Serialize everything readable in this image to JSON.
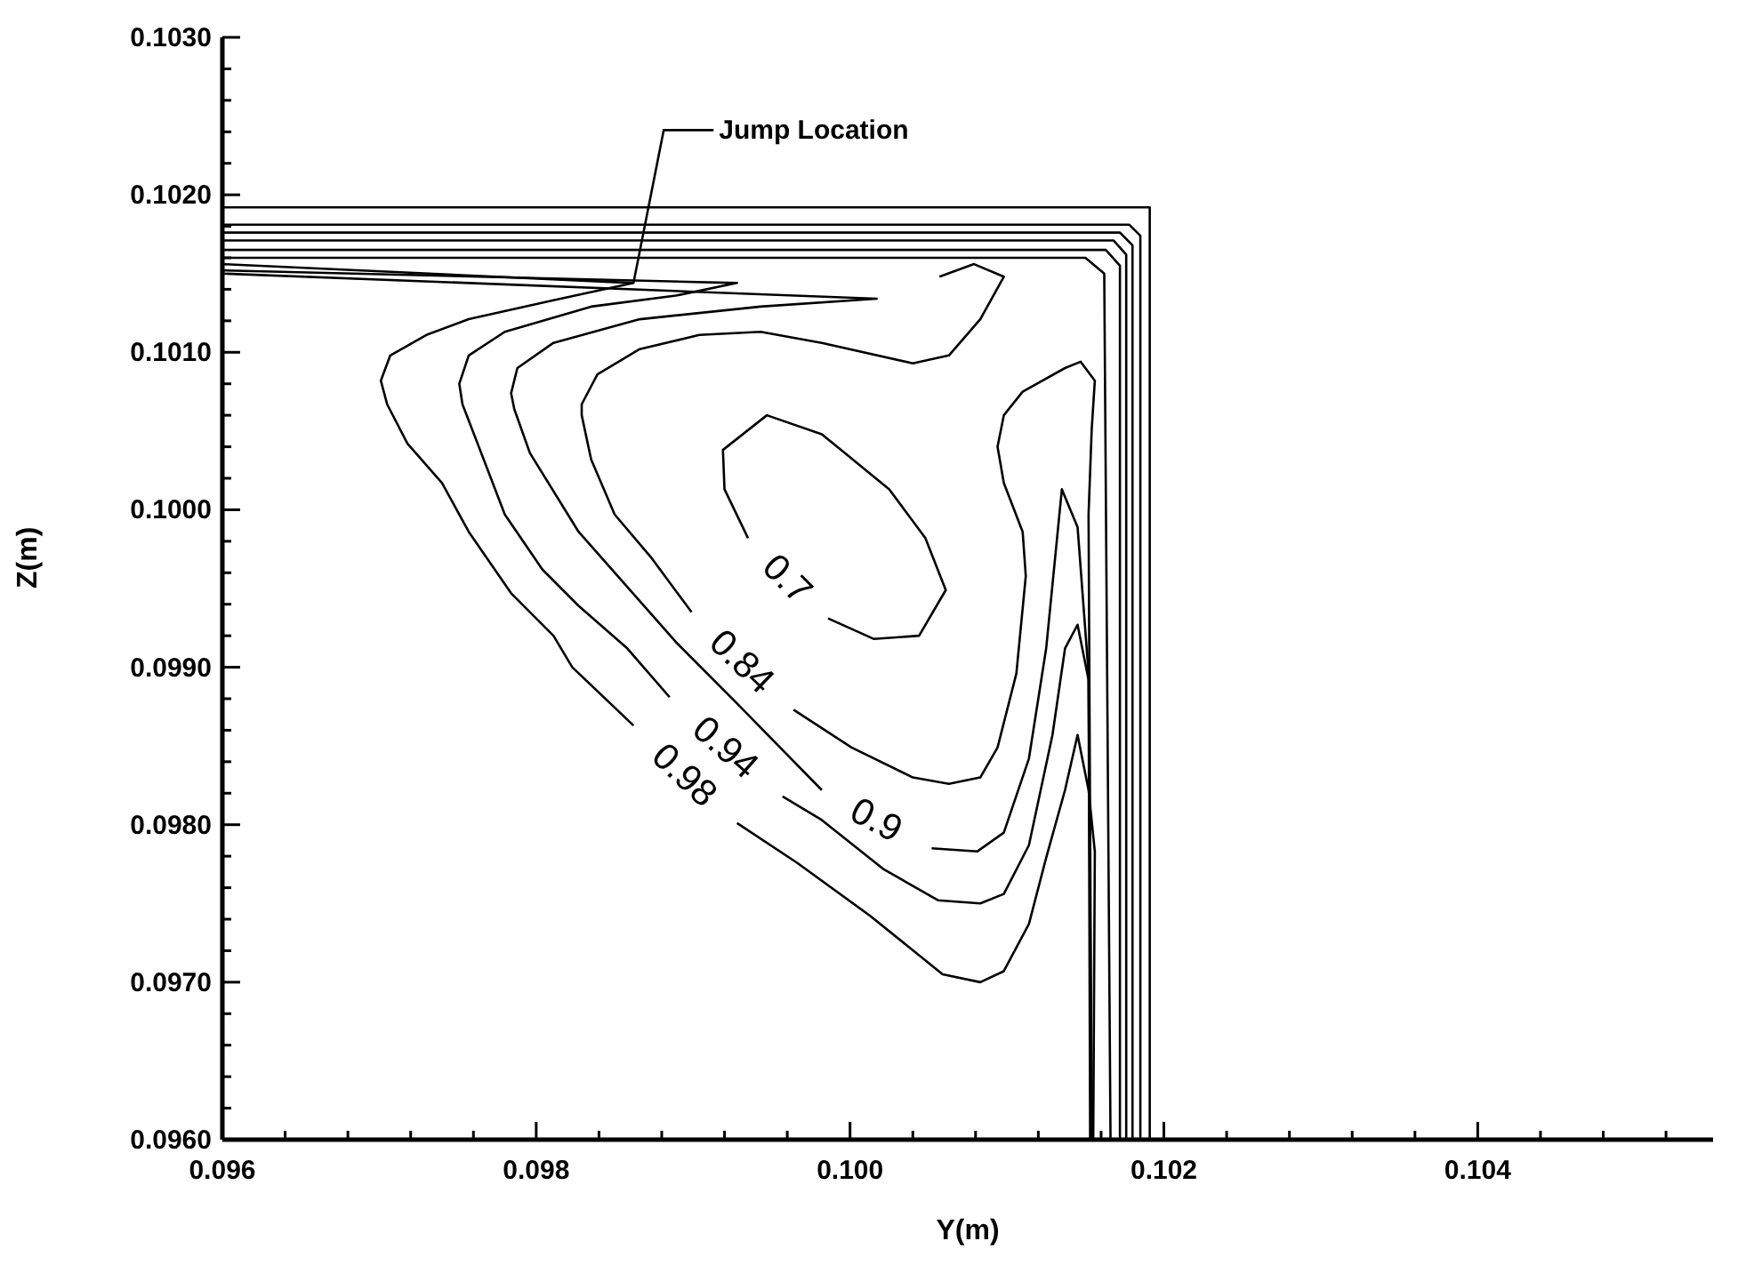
{
  "chart_data": {
    "type": "line",
    "xlabel": "Y(m)",
    "ylabel": "Z(m)",
    "xlim": [
      0.096,
      0.1055
    ],
    "ylim": [
      0.096,
      0.103
    ],
    "marker": "none",
    "line_style": "solid",
    "xticks": [
      0.096,
      {
        "value": 0.0964,
        "label": null
      },
      {
        "value": 0.0968,
        "label": null
      },
      {
        "value": 0.0972,
        "label": null
      },
      {
        "value": 0.0976,
        "label": null
      },
      0.098,
      {
        "value": 0.0984,
        "label": null
      },
      {
        "value": 0.0988,
        "label": null
      },
      {
        "value": 0.0992,
        "label": null
      },
      {
        "value": 0.0996,
        "label": null
      },
      {
        "value": 0.1,
        "label": "0.100"
      },
      {
        "value": 0.1004,
        "label": null
      },
      {
        "value": 0.1008,
        "label": null
      },
      {
        "value": 0.1012,
        "label": null
      },
      {
        "value": 0.1016,
        "label": null
      },
      0.102,
      {
        "value": 0.1024,
        "label": null
      },
      {
        "value": 0.1028,
        "label": null
      },
      {
        "value": 0.1032,
        "label": null
      },
      {
        "value": 0.1036,
        "label": null
      },
      0.104,
      {
        "value": 0.1044,
        "label": null
      },
      {
        "value": 0.1048,
        "label": null
      },
      {
        "value": 0.1052,
        "label": null
      }
    ],
    "yticks": [
      {
        "value": 0.096,
        "label": "0.0960"
      },
      {
        "value": 0.0962,
        "label": null
      },
      {
        "value": 0.0964,
        "label": null
      },
      {
        "value": 0.0966,
        "label": null
      },
      {
        "value": 0.0968,
        "label": null
      },
      {
        "value": 0.097,
        "label": "0.0970"
      },
      {
        "value": 0.0972,
        "label": null
      },
      {
        "value": 0.0974,
        "label": null
      },
      {
        "value": 0.0976,
        "label": null
      },
      {
        "value": 0.0978,
        "label": null
      },
      {
        "value": 0.098,
        "label": "0.0980"
      },
      {
        "value": 0.0982,
        "label": null
      },
      {
        "value": 0.0984,
        "label": null
      },
      {
        "value": 0.0986,
        "label": null
      },
      {
        "value": 0.0988,
        "label": null
      },
      {
        "value": 0.099,
        "label": "0.0990"
      },
      {
        "value": 0.0992,
        "label": null
      },
      {
        "value": 0.0994,
        "label": null
      },
      {
        "value": 0.0996,
        "label": null
      },
      {
        "value": 0.0998,
        "label": null
      },
      {
        "value": 0.1,
        "label": "0.1000"
      },
      {
        "value": 0.1002,
        "label": null
      },
      {
        "value": 0.1004,
        "label": null
      },
      {
        "value": 0.1006,
        "label": null
      },
      {
        "value": 0.1008,
        "label": null
      },
      {
        "value": 0.101,
        "label": "0.1010"
      },
      {
        "value": 0.1012,
        "label": null
      },
      {
        "value": 0.1014,
        "label": null
      },
      {
        "value": 0.1016,
        "label": null
      },
      {
        "value": 0.1018,
        "label": null
      },
      {
        "value": 0.102,
        "label": "0.1020"
      },
      {
        "value": 0.1022,
        "label": null
      },
      {
        "value": 0.1024,
        "label": null
      },
      {
        "value": 0.1026,
        "label": null
      },
      {
        "value": 0.1028,
        "label": null
      },
      {
        "value": 0.103,
        "label": "0.1030"
      }
    ],
    "annotations": [
      {
        "text": "Jump Location",
        "x": 0.09862,
        "y": 0.10144
      }
    ],
    "series": [
      {
        "name": "0.98",
        "color": "#000000",
        "x": [
          0.096,
          0.09862,
          0.09811,
          0.09757,
          0.0973,
          0.09707,
          0.09701,
          0.09705,
          0.09718,
          0.0974,
          0.09757,
          0.09784,
          0.09811,
          0.09823,
          0.09862,
          null,
          0.09928,
          0.09966,
          0.10013,
          0.10059,
          0.10083,
          0.10098,
          0.10114,
          0.10125,
          0.10137,
          0.10145,
          0.10152,
          0.10156,
          0.10155
        ],
        "values": [
          0.10156,
          0.10144,
          0.10133,
          0.10121,
          0.10111,
          0.10098,
          0.10082,
          0.10067,
          0.10042,
          0.10017,
          0.09986,
          0.09947,
          0.0992,
          0.099,
          0.09863,
          null,
          0.09801,
          0.09776,
          0.09742,
          0.09705,
          0.097,
          0.09707,
          0.09737,
          0.09779,
          0.09822,
          0.09857,
          0.09822,
          0.09783,
          0.096
        ]
      },
      {
        "name": "0.94",
        "color": "#000000",
        "x": [
          0.096,
          0.09928,
          0.09889,
          0.09835,
          0.0978,
          0.09757,
          0.09751,
          0.09753,
          0.09765,
          0.0978,
          0.09804,
          0.09827,
          0.09858,
          0.09885,
          null,
          0.09957,
          0.09982,
          0.10021,
          0.10056,
          0.10083,
          0.10098,
          0.10114,
          0.10129,
          0.10137,
          0.10145,
          0.10152,
          0.10154
        ],
        "values": [
          0.10152,
          0.10144,
          0.10136,
          0.10129,
          0.10113,
          0.10098,
          0.1008,
          0.10067,
          0.10036,
          0.09997,
          0.09962,
          0.09939,
          0.09912,
          0.09881,
          null,
          0.09818,
          0.09803,
          0.09772,
          0.09752,
          0.0975,
          0.09756,
          0.09787,
          0.09857,
          0.09912,
          0.09927,
          0.09892,
          0.096
        ]
      },
      {
        "name": "0.9",
        "color": "#000000",
        "x": [
          0.096,
          0.10017,
          0.09943,
          0.09866,
          0.09811,
          0.09788,
          0.09784,
          0.09786,
          0.09796,
          0.09827,
          0.09858,
          0.09889,
          0.09928,
          0.09982,
          null,
          0.10052,
          0.10081,
          0.10098,
          0.10114,
          0.10125,
          0.10135,
          0.10145,
          0.10152,
          0.10153
        ],
        "values": [
          0.1015,
          0.10134,
          0.10129,
          0.10121,
          0.10106,
          0.1009,
          0.10074,
          0.10064,
          0.10036,
          0.09986,
          0.09951,
          0.09916,
          0.09877,
          0.09822,
          null,
          0.09785,
          0.09783,
          0.09795,
          0.09842,
          0.09912,
          0.10013,
          0.09989,
          0.09896,
          0.096
        ]
      },
      {
        "name": "0.84",
        "color": "#000000",
        "x": [
          0.10057,
          0.10079,
          0.10098,
          0.10083,
          0.10063,
          0.1004,
          0.09982,
          0.09943,
          0.09904,
          0.09866,
          0.09839,
          0.09829,
          0.09829,
          0.09835,
          0.0985,
          0.09873,
          0.09899,
          null,
          0.09964,
          0.10001,
          0.1004,
          0.10063,
          0.10083,
          0.10094,
          0.10106,
          0.10112,
          0.1011,
          0.10098,
          0.10094,
          0.10098,
          0.1011,
          0.10137,
          0.10147,
          0.10156,
          0.10154,
          0.10152,
          0.10154
        ],
        "values": [
          0.10148,
          0.10156,
          0.10148,
          0.10121,
          0.10098,
          0.10093,
          0.10106,
          0.10113,
          0.10111,
          0.10102,
          0.10086,
          0.10067,
          0.1006,
          0.10032,
          0.09997,
          0.0997,
          0.09935,
          null,
          0.09873,
          0.09849,
          0.0983,
          0.09826,
          0.0983,
          0.09849,
          0.09896,
          0.09958,
          0.09986,
          0.10017,
          0.1004,
          0.1006,
          0.10075,
          0.1009,
          0.10094,
          0.10082,
          0.10051,
          0.09997,
          0.096
        ]
      },
      {
        "name": "0.7",
        "color": "#000000",
        "x": [
          0.09935,
          0.0992,
          0.09919,
          0.09947,
          0.09982,
          0.10025,
          0.10048,
          0.10061,
          0.10044,
          0.10015,
          0.09986
        ],
        "values": [
          0.09982,
          0.10013,
          0.10038,
          0.1006,
          0.10048,
          0.10013,
          0.09982,
          0.09949,
          0.0992,
          0.09918,
          0.09931
        ]
      },
      {
        "color": "#000000",
        "x": [
          0.096,
          0.10191,
          0.10191
        ],
        "values": [
          0.10192,
          0.10192,
          0.096
        ]
      },
      {
        "color": "#000000",
        "x": [
          0.096,
          0.10178,
          0.10185,
          0.10185
        ],
        "values": [
          0.10181,
          0.10181,
          0.10174,
          0.096
        ]
      },
      {
        "color": "#000000",
        "x": [
          0.096,
          0.10172,
          0.1018,
          0.1018
        ],
        "values": [
          0.10176,
          0.10176,
          0.10168,
          0.096
        ]
      },
      {
        "color": "#000000",
        "x": [
          0.096,
          0.10168,
          0.10176,
          0.10176
        ],
        "values": [
          0.10171,
          0.10171,
          0.10162,
          0.096
        ]
      },
      {
        "color": "#000000",
        "x": [
          0.096,
          0.10163,
          0.10172,
          0.10172
        ],
        "values": [
          0.10165,
          0.10165,
          0.10155,
          0.096
        ]
      },
      {
        "color": "#000000",
        "x": [
          0.096,
          0.1015,
          0.10162,
          0.10166
        ],
        "values": [
          0.1016,
          0.1016,
          0.1015,
          0.096
        ]
      }
    ]
  }
}
